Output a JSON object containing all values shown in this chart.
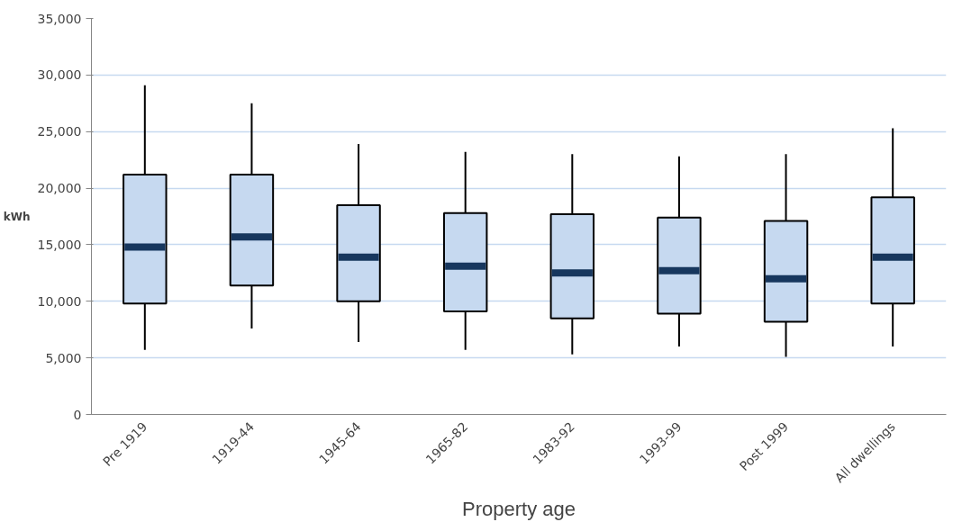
{
  "chart_data": {
    "type": "box",
    "xlabel": "Property age",
    "ylabel": "kWh",
    "categories": [
      "Pre 1919",
      "1919-44",
      "1945-64",
      "1965-82",
      "1983-92",
      "1993-99",
      "Post 1999",
      "All dwellings"
    ],
    "boxes": [
      {
        "low": 5700,
        "q1": 9800,
        "median": 14800,
        "q3": 21200,
        "high": 29100
      },
      {
        "low": 7600,
        "q1": 11400,
        "median": 15700,
        "q3": 21200,
        "high": 27500
      },
      {
        "low": 6400,
        "q1": 10000,
        "median": 13900,
        "q3": 18500,
        "high": 23900
      },
      {
        "low": 5700,
        "q1": 9100,
        "median": 13100,
        "q3": 17800,
        "high": 23200
      },
      {
        "low": 5300,
        "q1": 8500,
        "median": 12500,
        "q3": 17700,
        "high": 23000
      },
      {
        "low": 6000,
        "q1": 8900,
        "median": 12700,
        "q3": 17400,
        "high": 22800
      },
      {
        "low": 5100,
        "q1": 8200,
        "median": 12000,
        "q3": 17100,
        "high": 23000
      },
      {
        "low": 6000,
        "q1": 9800,
        "median": 13900,
        "q3": 19200,
        "high": 25300
      }
    ],
    "ylim": [
      0,
      35000
    ],
    "yticks": [
      0,
      {
        "value": 5000,
        "label": "5,000"
      },
      {
        "value": 10000,
        "label": "10,000"
      },
      {
        "value": 15000,
        "label": "15,000"
      },
      {
        "value": 20000,
        "label": "20,000"
      },
      {
        "value": 25000,
        "label": "25,000"
      },
      {
        "value": 30000,
        "label": "30,000"
      },
      {
        "value": 35000,
        "label": "35,000"
      }
    ],
    "grid": "y"
  }
}
